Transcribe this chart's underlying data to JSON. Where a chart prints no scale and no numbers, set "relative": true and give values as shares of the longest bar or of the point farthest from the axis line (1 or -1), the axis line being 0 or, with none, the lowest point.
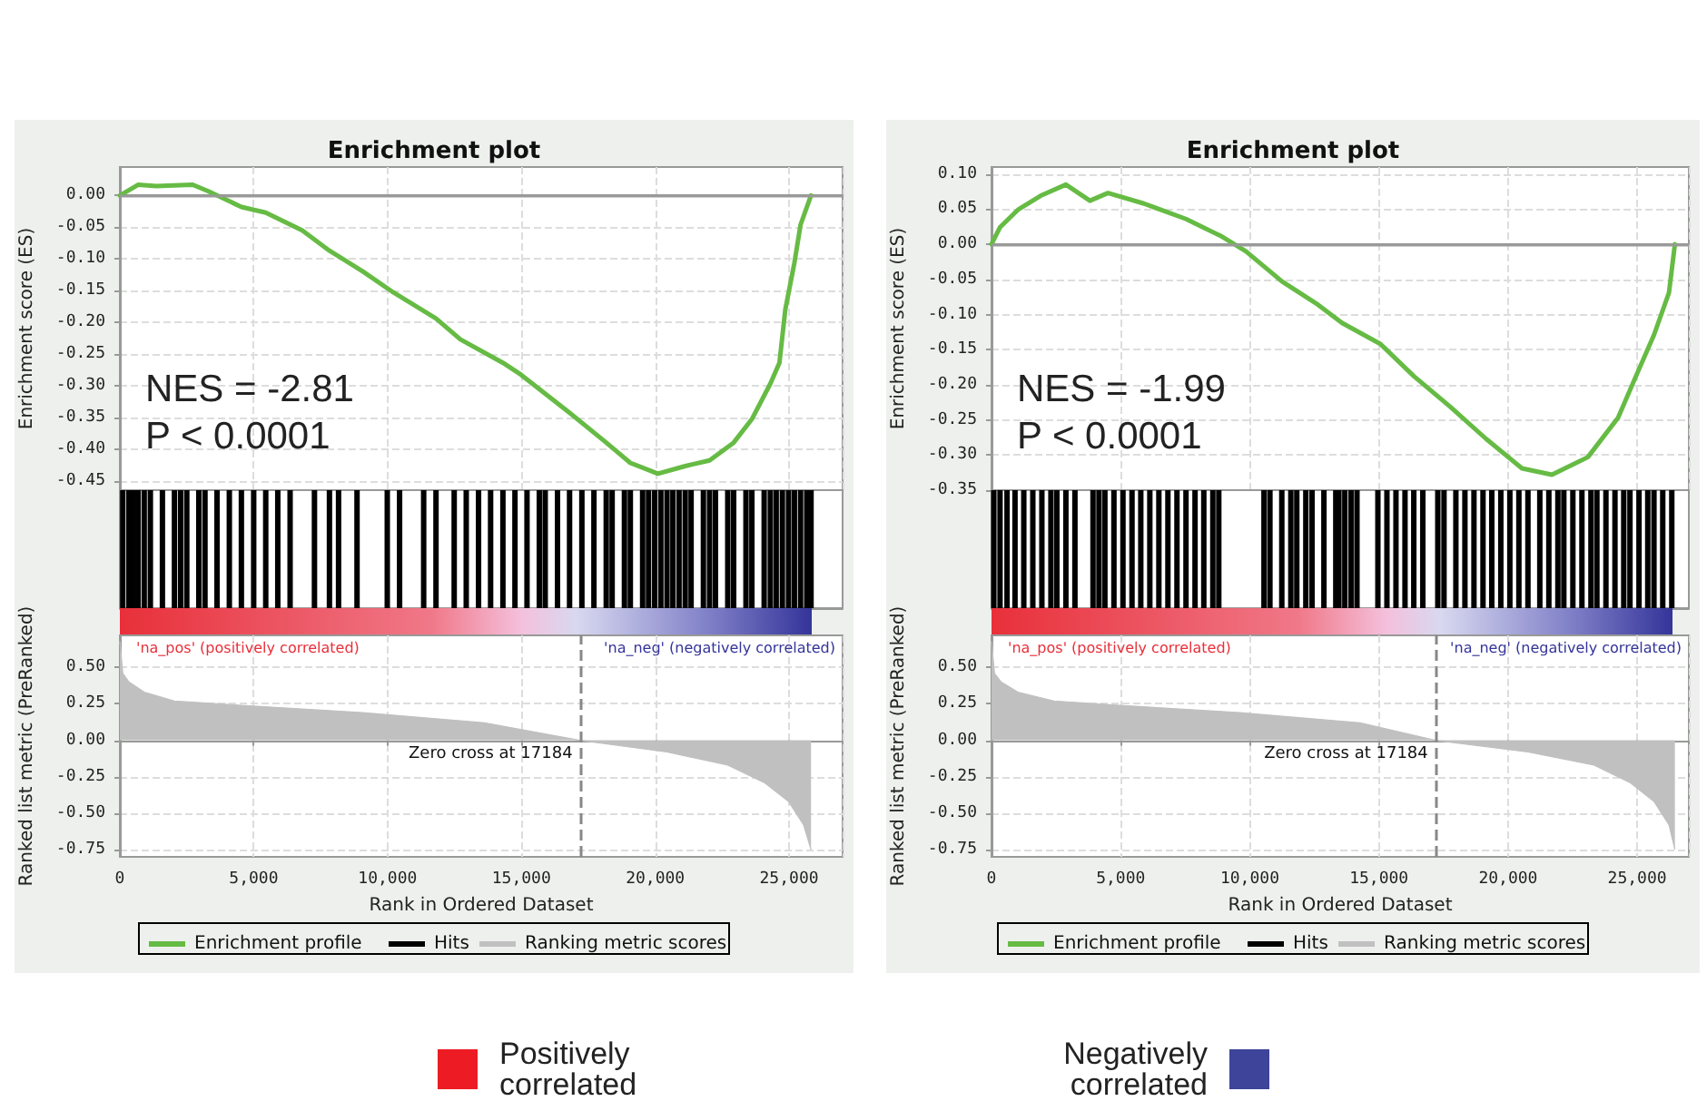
{
  "chart_data": [
    {
      "type": "line",
      "title": "Enrichment plot",
      "ylabel": "Enrichment score (ES)",
      "xlim": [
        0,
        27000
      ],
      "xticks": [
        {
          "value": 0,
          "label": null
        },
        {
          "value": 5000,
          "label": null
        },
        {
          "value": 10000,
          "label": null
        },
        {
          "value": 15000,
          "label": null
        },
        {
          "value": 20000,
          "label": null
        },
        {
          "value": 25000,
          "label": null
        }
      ],
      "ylim": [
        -0.465,
        0.045
      ],
      "yticks": [
        {
          "value": 0,
          "label": "0.00"
        },
        {
          "value": -0.05,
          "label": "-0.05"
        },
        {
          "value": -0.1,
          "label": "-0.10"
        },
        {
          "value": -0.15,
          "label": "-0.15"
        },
        {
          "value": -0.2,
          "label": "-0.20"
        },
        {
          "value": -0.25,
          "label": "-0.25"
        },
        {
          "value": -0.3,
          "label": "-0.30"
        },
        {
          "value": -0.35,
          "label": "-0.35"
        },
        {
          "value": -0.4,
          "label": "-0.40"
        },
        {
          "value": -0.45,
          "label": "-0.45"
        }
      ],
      "tick_labels": "y",
      "grid": true,
      "legend": "bottom",
      "annotations": [
        "NES = -2.81",
        "P < 0.0001"
      ],
      "ref_lines": [
        {
          "axis": "y",
          "value": 0,
          "color": "#999999"
        }
      ],
      "series": [
        {
          "name": "Enrichment profile",
          "color": "#66bb44",
          "x": [
            0,
            680,
            1360,
            2720,
            3290,
            4540,
            5450,
            6810,
            7830,
            9080,
            10220,
            11810,
            12720,
            14310,
            14990,
            16800,
            18170,
            19070,
            20100,
            21120,
            22030,
            22930,
            23610,
            24300,
            24640,
            24860,
            25200,
            25430,
            25820
          ],
          "values": [
            0,
            0.017,
            0.015,
            0.017,
            0.007,
            -0.018,
            -0.027,
            -0.055,
            -0.087,
            -0.12,
            -0.153,
            -0.194,
            -0.227,
            -0.264,
            -0.283,
            -0.343,
            -0.39,
            -0.422,
            -0.439,
            -0.427,
            -0.418,
            -0.39,
            -0.353,
            -0.297,
            -0.264,
            -0.18,
            -0.106,
            -0.046,
            0
          ]
        }
      ]
    },
    {
      "type": "bar",
      "relative": true,
      "xlim": [
        0,
        27000
      ],
      "tick_labels": false,
      "legend": "bottom",
      "series": [
        {
          "name": "Hits",
          "color": "#000000",
          "x": [
            110,
            340,
            500,
            680,
            910,
            1140,
            1590,
            2040,
            2270,
            2500,
            2950,
            3180,
            3630,
            4090,
            4540,
            5000,
            5450,
            5900,
            6360,
            7270,
            7830,
            8170,
            8860,
            9990,
            10450,
            11350,
            11810,
            12490,
            12940,
            13400,
            13850,
            14310,
            14760,
            15210,
            15670,
            15890,
            16350,
            16800,
            17260,
            17710,
            18170,
            18390,
            18850,
            19070,
            19530,
            19750,
            19980,
            20210,
            20440,
            20660,
            20890,
            21120,
            21340,
            21800,
            22030,
            22250,
            22710,
            22930,
            23390,
            23610,
            24070,
            24300,
            24520,
            24750,
            24980,
            25200,
            25430,
            25660,
            25820
          ],
          "values": [
            1,
            1,
            1,
            1,
            1,
            1,
            1,
            1,
            1,
            1,
            1,
            1,
            1,
            1,
            1,
            1,
            1,
            1,
            1,
            1,
            1,
            1,
            1,
            1,
            1,
            1,
            1,
            1,
            1,
            1,
            1,
            1,
            1,
            1,
            1,
            1,
            1,
            1,
            1,
            1,
            1,
            1,
            1,
            1,
            1,
            1,
            1,
            1,
            1,
            1,
            1,
            1,
            1,
            1,
            1,
            1,
            1,
            1,
            1,
            1,
            1,
            1,
            1,
            1,
            1,
            1,
            1,
            1,
            1
          ]
        }
      ]
    },
    {
      "type": "area",
      "xlabel": "Rank in Ordered Dataset",
      "ylabel": "Ranked list metric (PreRanked)",
      "xlim": [
        0,
        27000
      ],
      "xticks": [
        0,
        {
          "value": 5000,
          "label": "5,000"
        },
        {
          "value": 10000,
          "label": "10,000"
        },
        {
          "value": 15000,
          "label": "15,000"
        },
        {
          "value": 20000,
          "label": "20,000"
        },
        {
          "value": 25000,
          "label": "25,000"
        }
      ],
      "ylim": [
        -0.8,
        0.72
      ],
      "yticks": [
        {
          "value": 0.5,
          "label": "0.50"
        },
        {
          "value": 0.25,
          "label": "0.25"
        },
        {
          "value": 0,
          "label": "0.00"
        },
        {
          "value": -0.25,
          "label": "-0.25"
        },
        {
          "value": -0.5,
          "label": "-0.50"
        },
        {
          "value": -0.75,
          "label": "-0.75"
        }
      ],
      "grid": true,
      "legend": "bottom",
      "annotations": [
        "'na_pos' (positively correlated)",
        "'na_neg' (negatively correlated)"
      ],
      "ref_lines": [
        {
          "axis": "x",
          "value": 17184,
          "label": "Zero cross at 17184",
          "color": "#888888",
          "line_style": "dashed"
        }
      ],
      "series": [
        {
          "name": "Ranking metric scores",
          "color": "#c0c0c0",
          "x": [
            0,
            110,
            340,
            910,
            2040,
            4540,
            9080,
            13620,
            17184,
            20440,
            22710,
            24070,
            24980,
            25540,
            25820
          ],
          "values": [
            0.68,
            0.46,
            0.4,
            0.33,
            0.27,
            0.24,
            0.19,
            0.12,
            0,
            -0.08,
            -0.17,
            -0.29,
            -0.42,
            -0.58,
            -0.75
          ]
        }
      ]
    },
    {
      "type": "line",
      "title": "Enrichment plot",
      "ylabel": "Enrichment score (ES)",
      "xlim": [
        0,
        27000
      ],
      "xticks": [
        {
          "value": 0,
          "label": null
        },
        {
          "value": 5000,
          "label": null
        },
        {
          "value": 10000,
          "label": null
        },
        {
          "value": 15000,
          "label": null
        },
        {
          "value": 20000,
          "label": null
        },
        {
          "value": 25000,
          "label": null
        }
      ],
      "ylim": [
        -0.35,
        0.11
      ],
      "yticks": [
        {
          "value": 0.1,
          "label": "0.10"
        },
        {
          "value": 0.05,
          "label": "0.05"
        },
        {
          "value": 0,
          "label": "0.00"
        },
        {
          "value": -0.05,
          "label": "-0.05"
        },
        {
          "value": -0.1,
          "label": "-0.10"
        },
        {
          "value": -0.15,
          "label": "-0.15"
        },
        {
          "value": -0.2,
          "label": "-0.20"
        },
        {
          "value": -0.25,
          "label": "-0.25"
        },
        {
          "value": -0.3,
          "label": "-0.30"
        },
        {
          "value": -0.35,
          "label": "-0.35"
        }
      ],
      "tick_labels": "y",
      "grid": true,
      "legend": "bottom",
      "annotations": [
        "NES = -1.99",
        "P < 0.0001"
      ],
      "ref_lines": [
        {
          "axis": "y",
          "value": 0,
          "color": "#999999"
        }
      ],
      "series": [
        {
          "name": "Enrichment profile",
          "color": "#66bb44",
          "x": [
            0,
            325,
            1020,
            1950,
            2880,
            3810,
            4510,
            5900,
            7530,
            8920,
            9850,
            11250,
            12640,
            13570,
            15060,
            16360,
            17750,
            19150,
            20540,
            21700,
            23090,
            24260,
            24950,
            25650,
            26230,
            26460
          ],
          "values": [
            0,
            0.024,
            0.049,
            0.07,
            0.085,
            0.062,
            0.073,
            0.058,
            0.036,
            0.011,
            -0.01,
            -0.053,
            -0.086,
            -0.112,
            -0.142,
            -0.188,
            -0.231,
            -0.277,
            -0.319,
            -0.328,
            -0.303,
            -0.247,
            -0.188,
            -0.129,
            -0.069,
            0
          ]
        }
      ]
    },
    {
      "type": "bar",
      "relative": true,
      "xlim": [
        0,
        27000
      ],
      "tick_labels": false,
      "legend": "bottom",
      "series": [
        {
          "name": "Hits",
          "color": "#000000",
          "x": [
            90,
            330,
            600,
            910,
            1250,
            1600,
            1950,
            2300,
            2530,
            2880,
            3230,
            3930,
            4160,
            4390,
            4740,
            5090,
            5440,
            5780,
            6130,
            6480,
            6830,
            7180,
            7530,
            7880,
            8220,
            8570,
            8800,
            10550,
            10780,
            11240,
            11590,
            11820,
            12170,
            12410,
            12870,
            13330,
            13450,
            13680,
            13920,
            14150,
            14960,
            15310,
            15660,
            16010,
            16350,
            16700,
            17280,
            17520,
            17980,
            18330,
            18680,
            19030,
            19370,
            19720,
            20070,
            20420,
            20770,
            21230,
            21580,
            21930,
            22160,
            22510,
            22860,
            23210,
            23440,
            23790,
            24140,
            24480,
            24720,
            25070,
            25410,
            25650,
            25990,
            26340
          ],
          "values": [
            1,
            1,
            1,
            1,
            1,
            1,
            1,
            1,
            1,
            1,
            1,
            1,
            1,
            1,
            1,
            1,
            1,
            1,
            1,
            1,
            1,
            1,
            1,
            1,
            1,
            1,
            1,
            1,
            1,
            1,
            1,
            1,
            1,
            1,
            1,
            1,
            1,
            1,
            1,
            1,
            1,
            1,
            1,
            1,
            1,
            1,
            1,
            1,
            1,
            1,
            1,
            1,
            1,
            1,
            1,
            1,
            1,
            1,
            1,
            1,
            1,
            1,
            1,
            1,
            1,
            1,
            1,
            1,
            1,
            1,
            1,
            1,
            1,
            1
          ]
        }
      ]
    },
    {
      "type": "area",
      "xlabel": "Rank in Ordered Dataset",
      "ylabel": "Ranked list metric (PreRanked)",
      "xlim": [
        0,
        27000
      ],
      "xticks": [
        0,
        {
          "value": 5000,
          "label": "5,000"
        },
        {
          "value": 10000,
          "label": "10,000"
        },
        {
          "value": 15000,
          "label": "15,000"
        },
        {
          "value": 20000,
          "label": "20,000"
        },
        {
          "value": 25000,
          "label": "25,000"
        }
      ],
      "ylim": [
        -0.8,
        0.72
      ],
      "yticks": [
        {
          "value": 0.5,
          "label": "0.50"
        },
        {
          "value": 0.25,
          "label": "0.25"
        },
        {
          "value": 0,
          "label": "0.00"
        },
        {
          "value": -0.25,
          "label": "-0.25"
        },
        {
          "value": -0.5,
          "label": "-0.50"
        },
        {
          "value": -0.75,
          "label": "-0.75"
        }
      ],
      "grid": true,
      "legend": "bottom",
      "annotations": [
        "'na_pos' (positively correlated)",
        "'na_neg' (negatively correlated)"
      ],
      "ref_lines": [
        {
          "axis": "x",
          "value": 17184,
          "label": "Zero cross at 17184",
          "color": "#888888",
          "line_style": "dashed"
        }
      ],
      "series": [
        {
          "name": "Ranking metric scores",
          "color": "#c0c0c0",
          "x": [
            0,
            116,
            372,
            1020,
            2420,
            4970,
            9620,
            14270,
            17184,
            20770,
            23330,
            24720,
            25650,
            26230,
            26460
          ],
          "values": [
            0.68,
            0.46,
            0.4,
            0.33,
            0.27,
            0.24,
            0.19,
            0.12,
            0,
            -0.08,
            -0.17,
            -0.29,
            -0.42,
            -0.58,
            -0.75
          ]
        }
      ]
    },
    {
      "type": "other",
      "categories": [
        "Positively correlated",
        "Negatively correlated"
      ],
      "colors": [
        "#ed1c24",
        "#3d4499"
      ]
    }
  ]
}
